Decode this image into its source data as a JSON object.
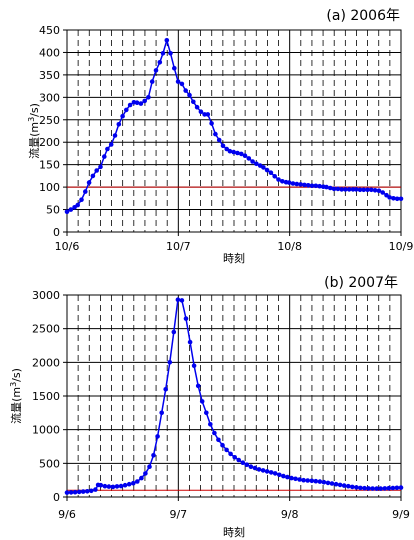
{
  "chart_data": [
    {
      "type": "line",
      "title": "(a) 2006年",
      "xlabel": "時刻",
      "ylabel": "流量(m³/s)",
      "ylabel_base": "流量(m",
      "ylabel_sup": "3",
      "ylabel_tail": "/s)",
      "x_ticks": [
        "10/6",
        "10/7",
        "10/8",
        "10/9"
      ],
      "ylim": [
        0,
        450
      ],
      "y_ticks": [
        "0",
        "50",
        "100",
        "150",
        "200",
        "250",
        "300",
        "350",
        "400",
        "450"
      ],
      "grid": true,
      "threshold": 100,
      "threshold_color": "#cc0000",
      "series_color": "#0000ee",
      "x_unit": "days since 10/6 00:00",
      "points": [
        [
          0.0,
          45
        ],
        [
          0.06,
          50
        ],
        [
          0.12,
          55
        ],
        [
          0.17,
          60
        ],
        [
          0.23,
          72
        ],
        [
          0.29,
          90
        ],
        [
          0.35,
          110
        ],
        [
          0.41,
          125
        ],
        [
          0.47,
          137
        ],
        [
          0.53,
          145
        ],
        [
          0.59,
          168
        ],
        [
          0.64,
          185
        ],
        [
          0.7,
          195
        ],
        [
          0.76,
          215
        ],
        [
          0.82,
          240
        ],
        [
          0.88,
          258
        ],
        [
          0.94,
          272
        ],
        [
          1.0,
          283
        ],
        [
          1.06,
          289
        ],
        [
          1.11,
          288
        ],
        [
          1.17,
          286
        ],
        [
          1.23,
          292
        ],
        [
          1.29,
          300
        ],
        [
          1.35,
          335
        ],
        [
          1.41,
          360
        ],
        [
          1.47,
          378
        ],
        [
          1.52,
          398
        ],
        [
          1.58,
          427
        ],
        [
          1.64,
          398
        ],
        [
          1.7,
          365
        ],
        [
          1.76,
          335
        ],
        [
          1.82,
          330
        ],
        [
          1.88,
          315
        ],
        [
          1.94,
          305
        ],
        [
          2.0,
          290
        ],
        [
          2.06,
          278
        ],
        [
          2.12,
          268
        ],
        [
          2.18,
          262
        ],
        [
          2.23,
          262
        ],
        [
          2.29,
          242
        ],
        [
          2.35,
          218
        ],
        [
          2.41,
          205
        ],
        [
          2.47,
          192
        ],
        [
          2.53,
          185
        ],
        [
          2.58,
          180
        ],
        [
          2.64,
          178
        ],
        [
          2.7,
          176
        ],
        [
          2.76,
          174
        ],
        [
          2.82,
          170
        ],
        [
          2.88,
          164
        ],
        [
          2.94,
          157
        ],
        [
          3.0,
          152
        ],
        [
          3.06,
          148
        ],
        [
          3.11,
          144
        ],
        [
          3.17,
          138
        ],
        [
          3.23,
          132
        ],
        [
          3.29,
          124
        ],
        [
          3.35,
          117
        ],
        [
          3.41,
          113
        ],
        [
          3.47,
          111
        ],
        [
          3.52,
          110
        ],
        [
          3.58,
          108
        ],
        [
          3.64,
          107
        ],
        [
          3.7,
          106
        ],
        [
          3.76,
          105
        ],
        [
          3.82,
          104
        ],
        [
          3.88,
          103
        ],
        [
          3.94,
          103
        ],
        [
          4.0,
          102
        ],
        [
          4.06,
          101
        ],
        [
          4.11,
          100
        ],
        [
          4.17,
          98
        ],
        [
          4.23,
          96
        ],
        [
          4.29,
          96
        ],
        [
          4.35,
          95
        ],
        [
          4.41,
          95
        ],
        [
          4.47,
          95
        ],
        [
          4.53,
          95
        ],
        [
          4.58,
          95
        ],
        [
          4.64,
          94
        ],
        [
          4.7,
          94
        ],
        [
          4.76,
          94
        ],
        [
          4.82,
          94
        ],
        [
          4.88,
          93
        ],
        [
          4.94,
          92
        ],
        [
          5.0,
          88
        ],
        [
          5.06,
          82
        ],
        [
          5.11,
          77
        ],
        [
          5.17,
          75
        ],
        [
          5.23,
          74
        ],
        [
          5.29,
          74
        ]
      ]
    },
    {
      "type": "line",
      "title": "(b) 2007年",
      "xlabel": "時刻",
      "ylabel": "流量(m³/s)",
      "ylabel_base": "流量(m",
      "ylabel_sup": "3",
      "ylabel_tail": "/s)",
      "x_ticks": [
        "9/6",
        "9/7",
        "9/8",
        "9/9"
      ],
      "ylim": [
        0,
        3000
      ],
      "y_ticks": [
        "0",
        "500",
        "1000",
        "1500",
        "2000",
        "2500",
        "3000"
      ],
      "grid": true,
      "threshold": 100,
      "threshold_color": "#cc0000",
      "series_color": "#0000ee",
      "x_unit": "days since 9/6 00:00",
      "points": [
        [
          0.0,
          65
        ],
        [
          0.06,
          68
        ],
        [
          0.12,
          72
        ],
        [
          0.18,
          75
        ],
        [
          0.24,
          80
        ],
        [
          0.3,
          85
        ],
        [
          0.36,
          92
        ],
        [
          0.42,
          110
        ],
        [
          0.46,
          180
        ],
        [
          0.5,
          175
        ],
        [
          0.56,
          160
        ],
        [
          0.62,
          155
        ],
        [
          0.68,
          150
        ],
        [
          0.74,
          158
        ],
        [
          0.8,
          162
        ],
        [
          0.86,
          175
        ],
        [
          0.92,
          190
        ],
        [
          0.98,
          205
        ],
        [
          1.04,
          230
        ],
        [
          1.1,
          280
        ],
        [
          1.16,
          350
        ],
        [
          1.22,
          450
        ],
        [
          1.28,
          620
        ],
        [
          1.34,
          900
        ],
        [
          1.4,
          1250
        ],
        [
          1.46,
          1600
        ],
        [
          1.52,
          2000
        ],
        [
          1.58,
          2450
        ],
        [
          1.64,
          2930
        ],
        [
          1.7,
          2920
        ],
        [
          1.76,
          2650
        ],
        [
          1.82,
          2300
        ],
        [
          1.88,
          1950
        ],
        [
          1.94,
          1650
        ],
        [
          2.0,
          1420
        ],
        [
          2.06,
          1250
        ],
        [
          2.12,
          1080
        ],
        [
          2.18,
          950
        ],
        [
          2.24,
          850
        ],
        [
          2.3,
          770
        ],
        [
          2.36,
          700
        ],
        [
          2.42,
          640
        ],
        [
          2.48,
          590
        ],
        [
          2.54,
          550
        ],
        [
          2.6,
          510
        ],
        [
          2.66,
          480
        ],
        [
          2.72,
          450
        ],
        [
          2.78,
          430
        ],
        [
          2.84,
          410
        ],
        [
          2.9,
          395
        ],
        [
          2.96,
          380
        ],
        [
          3.02,
          365
        ],
        [
          3.08,
          350
        ],
        [
          3.14,
          330
        ],
        [
          3.2,
          310
        ],
        [
          3.26,
          295
        ],
        [
          3.32,
          280
        ],
        [
          3.38,
          270
        ],
        [
          3.44,
          260
        ],
        [
          3.5,
          250
        ],
        [
          3.56,
          245
        ],
        [
          3.62,
          240
        ],
        [
          3.68,
          235
        ],
        [
          3.74,
          228
        ],
        [
          3.8,
          220
        ],
        [
          3.86,
          210
        ],
        [
          3.92,
          200
        ],
        [
          3.98,
          190
        ],
        [
          4.04,
          180
        ],
        [
          4.1,
          170
        ],
        [
          4.16,
          160
        ],
        [
          4.22,
          150
        ],
        [
          4.28,
          142
        ],
        [
          4.34,
          135
        ],
        [
          4.4,
          130
        ],
        [
          4.46,
          128
        ],
        [
          4.52,
          126
        ],
        [
          4.58,
          125
        ],
        [
          4.64,
          125
        ],
        [
          4.7,
          127
        ],
        [
          4.76,
          130
        ],
        [
          4.82,
          134
        ],
        [
          4.88,
          137
        ],
        [
          4.94,
          140
        ]
      ]
    }
  ]
}
